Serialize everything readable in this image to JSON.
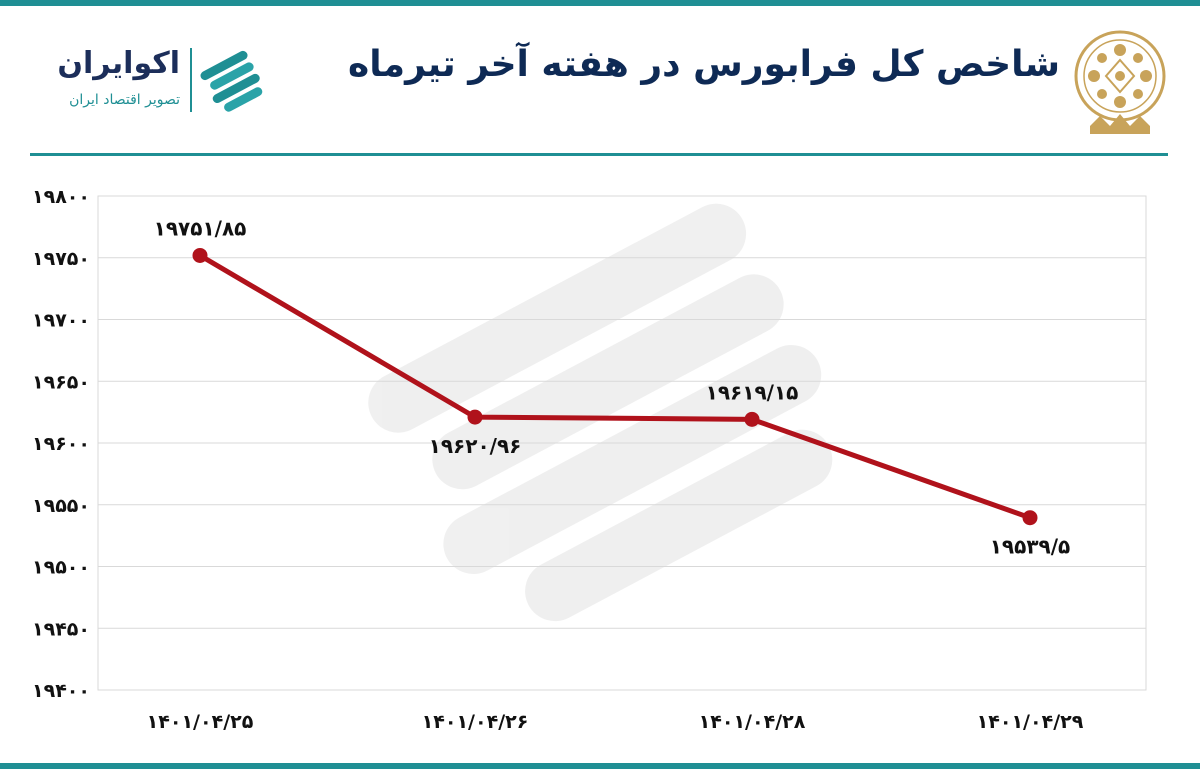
{
  "header": {
    "title": "شاخص کل فرابورس در هفته آخر تیرماه",
    "brand_name": "اکوایران",
    "brand_tagline": "تصویر اقتصاد ایران"
  },
  "colors": {
    "accent": "#1f8f94",
    "title": "#0e2a55",
    "line": "#b0121b",
    "grid": "#d9d9d9",
    "seal": "#c8a35a"
  },
  "chart_data": {
    "type": "line",
    "title": "",
    "xlabel": "",
    "ylabel": "",
    "grid": true,
    "legend": "none",
    "ylim": [
      19400,
      19800
    ],
    "yticks": [
      "۱۹۴۰۰",
      "۱۹۴۵۰",
      "۱۹۵۰۰",
      "۱۹۵۵۰",
      "۱۹۶۰۰",
      "۱۹۶۵۰",
      "۱۹۷۰۰",
      "۱۹۷۵۰",
      "۱۹۸۰۰"
    ],
    "ytick_values": [
      19400,
      19450,
      19500,
      19550,
      19600,
      19650,
      19700,
      19750,
      19800
    ],
    "categories": [
      "۱۴۰۱/۰۴/۲۵",
      "۱۴۰۱/۰۴/۲۶",
      "۱۴۰۱/۰۴/۲۸",
      "۱۴۰۱/۰۴/۲۹"
    ],
    "series": [
      {
        "values": [
          19751.85,
          19620.96,
          19619.15,
          19539.5
        ],
        "labels": [
          "۱۹۷۵۱/۸۵",
          "۱۹۶۲۰/۹۶",
          "۱۹۶۱۹/۱۵",
          "۱۹۵۳۹/۵"
        ],
        "label_positions": [
          "above",
          "below",
          "above",
          "below"
        ]
      }
    ]
  }
}
